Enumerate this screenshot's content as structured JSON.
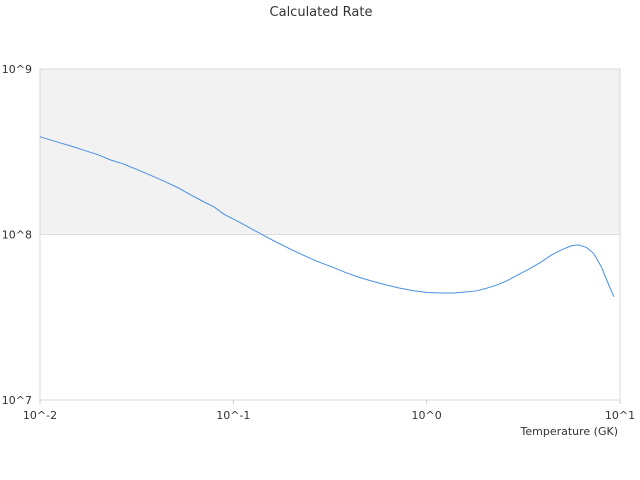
{
  "chart_data": {
    "type": "line",
    "title": "Calculated Rate",
    "xlabel": "Temperature (GK)",
    "ylabel": "",
    "x_scale": "log",
    "y_scale": "log",
    "xlim": [
      0.01,
      10
    ],
    "ylim": [
      10000000,
      1000000000
    ],
    "x_ticks": [
      {
        "value": 0.01,
        "label": "10^-2"
      },
      {
        "value": 0.1,
        "label": "10^-1"
      },
      {
        "value": 1,
        "label": "10^0"
      },
      {
        "value": 10,
        "label": "10^1"
      }
    ],
    "y_ticks": [
      {
        "value": 10000000,
        "label": "10^7"
      },
      {
        "value": 100000000,
        "label": "10^8"
      },
      {
        "value": 1000000000,
        "label": "10^9"
      }
    ],
    "shaded_band": {
      "from": 100000000,
      "to": 1000000000,
      "color": "#f2f2f2"
    },
    "grid": false,
    "series": [
      {
        "color": "#4a90e2",
        "points": [
          [
            0.01,
            390000000
          ],
          [
            0.012,
            365000000
          ],
          [
            0.0145,
            342000000
          ],
          [
            0.017,
            322000000
          ],
          [
            0.02,
            303000000
          ],
          [
            0.023,
            283000000
          ],
          [
            0.027,
            267000000
          ],
          [
            0.032,
            246000000
          ],
          [
            0.038,
            226000000
          ],
          [
            0.045,
            207000000
          ],
          [
            0.052,
            191000000
          ],
          [
            0.06,
            174000000
          ],
          [
            0.07,
            158000000
          ],
          [
            0.08,
            146000000
          ],
          [
            0.09,
            132000000
          ],
          [
            0.1,
            124000000
          ],
          [
            0.11,
            117000000
          ],
          [
            0.13,
            105000000
          ],
          [
            0.15,
            96000000
          ],
          [
            0.17,
            89000000
          ],
          [
            0.2,
            81000000
          ],
          [
            0.23,
            75000000
          ],
          [
            0.27,
            69000000
          ],
          [
            0.32,
            64000000
          ],
          [
            0.38,
            59000000
          ],
          [
            0.45,
            55000000
          ],
          [
            0.53,
            52000000
          ],
          [
            0.62,
            49500000
          ],
          [
            0.72,
            47500000
          ],
          [
            0.85,
            45800000
          ],
          [
            1.0,
            44600000
          ],
          [
            1.2,
            44300000
          ],
          [
            1.4,
            44300000
          ],
          [
            1.6,
            45000000
          ],
          [
            1.8,
            45600000
          ],
          [
            2.0,
            47000000
          ],
          [
            2.3,
            49500000
          ],
          [
            2.6,
            52500000
          ],
          [
            3.0,
            57500000
          ],
          [
            3.4,
            62000000
          ],
          [
            3.9,
            68000000
          ],
          [
            4.4,
            75000000
          ],
          [
            5.0,
            81000000
          ],
          [
            5.6,
            85500000
          ],
          [
            6.1,
            86500000
          ],
          [
            6.7,
            83500000
          ],
          [
            7.3,
            77000000
          ],
          [
            8.0,
            64000000
          ],
          [
            8.6,
            52000000
          ],
          [
            9.3,
            42000000
          ]
        ]
      }
    ]
  }
}
